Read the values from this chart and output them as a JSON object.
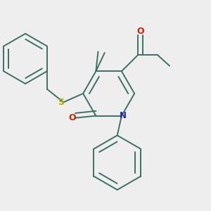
{
  "bg_color": "#eeeeee",
  "bond_color": "#3d7065",
  "atom_colors": {
    "N": "#2222cc",
    "O": "#cc2200",
    "S": "#aaaa00"
  },
  "lw": 1.4,
  "ring_r": 0.19,
  "ph_r": 0.125,
  "benz_r": 0.115
}
